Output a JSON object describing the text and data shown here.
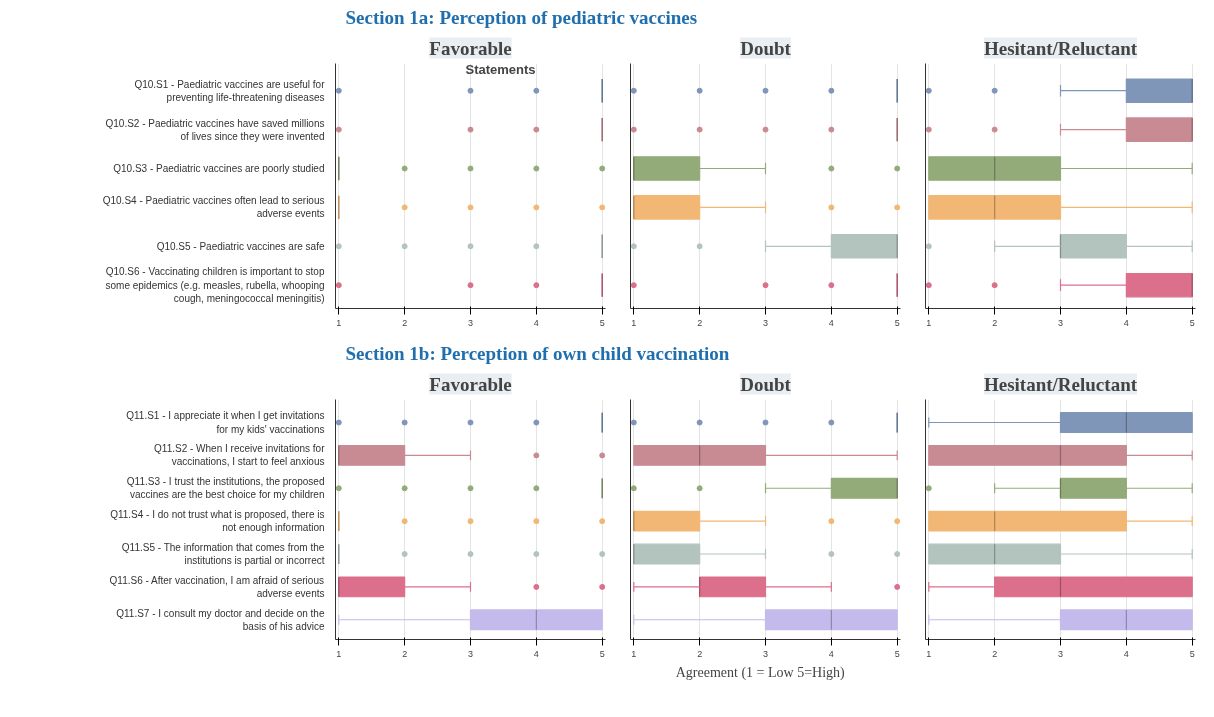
{
  "chart_data": [
    {
      "type": "box",
      "orientation": "horizontal",
      "subtitle": "Section 1a: Perception of pediatric vaccines",
      "title": "Favorable",
      "ylabel": "Statements",
      "categories": [
        "Q10.S1 - Paediatric vaccines are useful for preventing life-threatening diseases",
        "Q10.S2 - Paediatric vaccines have saved millions of lives since they were invented",
        "Q10.S3 - Paediatric vaccines are poorly studied",
        "Q10.S4 - Paediatric vaccines often lead to serious adverse events",
        "Q10.S5 - Paediatric vaccines are safe",
        "Q10.S6 - Vaccinating children is important to stop some epidemics (e.g. measles, rubella, whooping cough, meningococcal meningitis)"
      ],
      "colors": [
        "#7f96b8",
        "#c98b93",
        "#93ab79",
        "#f2b774",
        "#b2c4bd",
        "#dc6f8b"
      ],
      "boxes": [
        {
          "low": 5,
          "q1": 5,
          "median": 5,
          "q3": 5,
          "high": 5,
          "outliers": [
            1,
            3,
            4
          ]
        },
        {
          "low": 5,
          "q1": 5,
          "median": 5,
          "q3": 5,
          "high": 5,
          "outliers": [
            1,
            3,
            4
          ]
        },
        {
          "low": 1,
          "q1": 1,
          "median": 1,
          "q3": 1,
          "high": 1,
          "outliers": [
            2,
            3,
            4,
            5
          ]
        },
        {
          "low": 1,
          "q1": 1,
          "median": 1,
          "q3": 1,
          "high": 1,
          "outliers": [
            2,
            3,
            4,
            5
          ]
        },
        {
          "low": 5,
          "q1": 5,
          "median": 5,
          "q3": 5,
          "high": 5,
          "outliers": [
            1,
            2,
            3,
            4
          ]
        },
        {
          "low": 5,
          "q1": 5,
          "median": 5,
          "q3": 5,
          "high": 5,
          "outliers": [
            1,
            3,
            4
          ]
        }
      ],
      "xlim": [
        0.95,
        5.05
      ],
      "xticks": [
        1,
        2,
        3,
        4,
        5
      ],
      "grid": "x"
    },
    {
      "type": "box",
      "orientation": "horizontal",
      "title": "Doubt",
      "categories": [
        "Q10.S1 - Paediatric vaccines are useful for preventing life-threatening diseases",
        "Q10.S2 - Paediatric vaccines have saved millions of lives since they were invented",
        "Q10.S3 - Paediatric vaccines are poorly studied",
        "Q10.S4 - Paediatric vaccines often lead to serious adverse events",
        "Q10.S5 - Paediatric vaccines are safe",
        "Q10.S6 - Vaccinating children is important to stop some epidemics (e.g. measles, rubella, whooping cough, meningococcal meningitis)"
      ],
      "colors": [
        "#7f96b8",
        "#c98b93",
        "#93ab79",
        "#f2b774",
        "#b2c4bd",
        "#dc6f8b"
      ],
      "boxes": [
        {
          "low": 5,
          "q1": 5,
          "median": 5,
          "q3": 5,
          "high": 5,
          "outliers": [
            1,
            2,
            3,
            4
          ]
        },
        {
          "low": 5,
          "q1": 5,
          "median": 5,
          "q3": 5,
          "high": 5,
          "outliers": [
            1,
            2,
            3,
            4
          ]
        },
        {
          "low": 1,
          "q1": 1,
          "median": 1,
          "q3": 2,
          "high": 3,
          "outliers": [
            4,
            5
          ]
        },
        {
          "low": 1,
          "q1": 1,
          "median": 1,
          "q3": 2,
          "high": 3,
          "outliers": [
            4,
            5
          ]
        },
        {
          "low": 3,
          "q1": 4,
          "median": 5,
          "q3": 5,
          "high": 5,
          "outliers": [
            1,
            2
          ]
        },
        {
          "low": 5,
          "q1": 5,
          "median": 5,
          "q3": 5,
          "high": 5,
          "outliers": [
            1,
            3,
            4
          ]
        }
      ],
      "xlim": [
        0.95,
        5.05
      ],
      "xticks": [
        1,
        2,
        3,
        4,
        5
      ],
      "grid": "x",
      "tick_labels": "x"
    },
    {
      "type": "box",
      "orientation": "horizontal",
      "title": "Hesitant/Reluctant",
      "categories": [
        "Q10.S1 - Paediatric vaccines are useful for preventing life-threatening diseases",
        "Q10.S2 - Paediatric vaccines have saved millions of lives since they were invented",
        "Q10.S3 - Paediatric vaccines are poorly studied",
        "Q10.S4 - Paediatric vaccines often lead to serious adverse events",
        "Q10.S5 - Paediatric vaccines are safe",
        "Q10.S6 - Vaccinating children is important to stop some epidemics (e.g. measles, rubella, whooping cough, meningococcal meningitis)"
      ],
      "colors": [
        "#7f96b8",
        "#c98b93",
        "#93ab79",
        "#f2b774",
        "#b2c4bd",
        "#dc6f8b"
      ],
      "boxes": [
        {
          "low": 3,
          "q1": 4,
          "median": 5,
          "q3": 5,
          "high": 5,
          "outliers": [
            1,
            2
          ]
        },
        {
          "low": 3,
          "q1": 4,
          "median": 5,
          "q3": 5,
          "high": 5,
          "outliers": [
            1,
            2
          ]
        },
        {
          "low": 1,
          "q1": 1,
          "median": 2,
          "q3": 3,
          "high": 5
        },
        {
          "low": 1,
          "q1": 1,
          "median": 2,
          "q3": 3,
          "high": 5
        },
        {
          "low": 2,
          "q1": 3,
          "median": 3,
          "q3": 4,
          "high": 5,
          "outliers": [
            1
          ]
        },
        {
          "low": 3,
          "q1": 4,
          "median": 5,
          "q3": 5,
          "high": 5,
          "outliers": [
            1,
            2
          ]
        }
      ],
      "xlim": [
        0.95,
        5.05
      ],
      "xticks": [
        1,
        2,
        3,
        4,
        5
      ],
      "grid": "x",
      "tick_labels": "x"
    },
    {
      "type": "box",
      "orientation": "horizontal",
      "subtitle": "Section 1b: Perception of own child vaccination",
      "title": "Favorable",
      "categories": [
        "Q11.S1 - I appreciate it when I get invitations for my kids' vaccinations",
        "Q11.S2 - When I receive invitations for vaccinations, I start to feel anxious",
        "Q11.S3 - I trust the institutions, the proposed vaccines are the best choice for my children",
        "Q11.S4 - I do not trust what is proposed, there is not enough information",
        "Q11.S5 - The information that comes from the institutions is partial or incorrect",
        "Q11.S6 - After vaccination, I am afraid of serious adverse events",
        "Q11.S7 - I consult my doctor and decide on the basis of his advice"
      ],
      "colors": [
        "#7f96b8",
        "#c98b93",
        "#93ab79",
        "#f2b774",
        "#b2c4bd",
        "#dc6f8b",
        "#c4bbec"
      ],
      "boxes": [
        {
          "low": 5,
          "q1": 5,
          "median": 5,
          "q3": 5,
          "high": 5,
          "outliers": [
            1,
            2,
            3,
            4
          ]
        },
        {
          "low": 1,
          "q1": 1,
          "median": 1,
          "q3": 2,
          "high": 3,
          "outliers": [
            4,
            5
          ]
        },
        {
          "low": 5,
          "q1": 5,
          "median": 5,
          "q3": 5,
          "high": 5,
          "outliers": [
            1,
            2,
            3,
            4
          ]
        },
        {
          "low": 1,
          "q1": 1,
          "median": 1,
          "q3": 1,
          "high": 1,
          "outliers": [
            2,
            3,
            4,
            5
          ]
        },
        {
          "low": 1,
          "q1": 1,
          "median": 1,
          "q3": 1,
          "high": 1,
          "outliers": [
            2,
            3,
            4,
            5
          ]
        },
        {
          "low": 1,
          "q1": 1,
          "median": 1,
          "q3": 2,
          "high": 3,
          "outliers": [
            4,
            5
          ]
        },
        {
          "low": 1,
          "q1": 3,
          "median": 4,
          "q3": 5,
          "high": 5
        }
      ],
      "xlim": [
        0.95,
        5.05
      ],
      "xticks": [
        1,
        2,
        3,
        4,
        5
      ],
      "grid": "x"
    },
    {
      "type": "box",
      "orientation": "horizontal",
      "title": "Doubt",
      "xlabel": "Agreement (1 = Low    5=High)",
      "categories": [
        "Q11.S1 - I appreciate it when I get invitations for my kids' vaccinations",
        "Q11.S2 - When I receive invitations for vaccinations, I start to feel anxious",
        "Q11.S3 - I trust the institutions, the proposed vaccines are the best choice for my children",
        "Q11.S4 - I do not trust what is proposed, there is not enough information",
        "Q11.S5 - The information that comes from the institutions is partial or incorrect",
        "Q11.S6 - After vaccination, I am afraid of serious adverse events",
        "Q11.S7 - I consult my doctor and decide on the basis of his advice"
      ],
      "colors": [
        "#7f96b8",
        "#c98b93",
        "#93ab79",
        "#f2b774",
        "#b2c4bd",
        "#dc6f8b",
        "#c4bbec"
      ],
      "boxes": [
        {
          "low": 5,
          "q1": 5,
          "median": 5,
          "q3": 5,
          "high": 5,
          "outliers": [
            1,
            2,
            3,
            4
          ]
        },
        {
          "low": 1,
          "q1": 1,
          "median": 2,
          "q3": 3,
          "high": 5
        },
        {
          "low": 3,
          "q1": 4,
          "median": 5,
          "q3": 5,
          "high": 5,
          "outliers": [
            1,
            2
          ]
        },
        {
          "low": 1,
          "q1": 1,
          "median": 1,
          "q3": 2,
          "high": 3,
          "outliers": [
            4,
            5
          ]
        },
        {
          "low": 1,
          "q1": 1,
          "median": 1,
          "q3": 2,
          "high": 3,
          "outliers": [
            4,
            5
          ]
        },
        {
          "low": 1,
          "q1": 2,
          "median": 2,
          "q3": 3,
          "high": 4,
          "outliers": [
            5
          ]
        },
        {
          "low": 1,
          "q1": 3,
          "median": 4,
          "q3": 5,
          "high": 5
        }
      ],
      "xlim": [
        0.95,
        5.05
      ],
      "xticks": [
        1,
        2,
        3,
        4,
        5
      ],
      "grid": "x",
      "tick_labels": "x"
    },
    {
      "type": "box",
      "orientation": "horizontal",
      "title": "Hesitant/Reluctant",
      "categories": [
        "Q11.S1 - I appreciate it when I get invitations for my kids' vaccinations",
        "Q11.S2 - When I receive invitations for vaccinations, I start to feel anxious",
        "Q11.S3 - I trust the institutions, the proposed vaccines are the best choice for my children",
        "Q11.S4 - I do not trust what is proposed, there is not enough information",
        "Q11.S5 - The information that comes from the institutions is partial or incorrect",
        "Q11.S6 - After vaccination, I am afraid of serious adverse events",
        "Q11.S7 - I consult my doctor and decide on the basis of his advice"
      ],
      "colors": [
        "#7f96b8",
        "#c98b93",
        "#93ab79",
        "#f2b774",
        "#b2c4bd",
        "#dc6f8b",
        "#c4bbec"
      ],
      "boxes": [
        {
          "low": 1,
          "q1": 3,
          "median": 4,
          "q3": 5,
          "high": 5
        },
        {
          "low": 1,
          "q1": 1,
          "median": 3,
          "q3": 4,
          "high": 5
        },
        {
          "low": 2,
          "q1": 3,
          "median": 3,
          "q3": 4,
          "high": 5,
          "outliers": [
            1
          ]
        },
        {
          "low": 1,
          "q1": 1,
          "median": 2,
          "q3": 4,
          "high": 5
        },
        {
          "low": 1,
          "q1": 1,
          "median": 2,
          "q3": 3,
          "high": 5
        },
        {
          "low": 1,
          "q1": 2,
          "median": 3,
          "q3": 5,
          "high": 5
        },
        {
          "low": 1,
          "q1": 3,
          "median": 4,
          "q3": 5,
          "high": 5
        }
      ],
      "xlim": [
        0.95,
        5.05
      ],
      "xticks": [
        1,
        2,
        3,
        4,
        5
      ],
      "grid": "x",
      "tick_labels": "x"
    }
  ]
}
